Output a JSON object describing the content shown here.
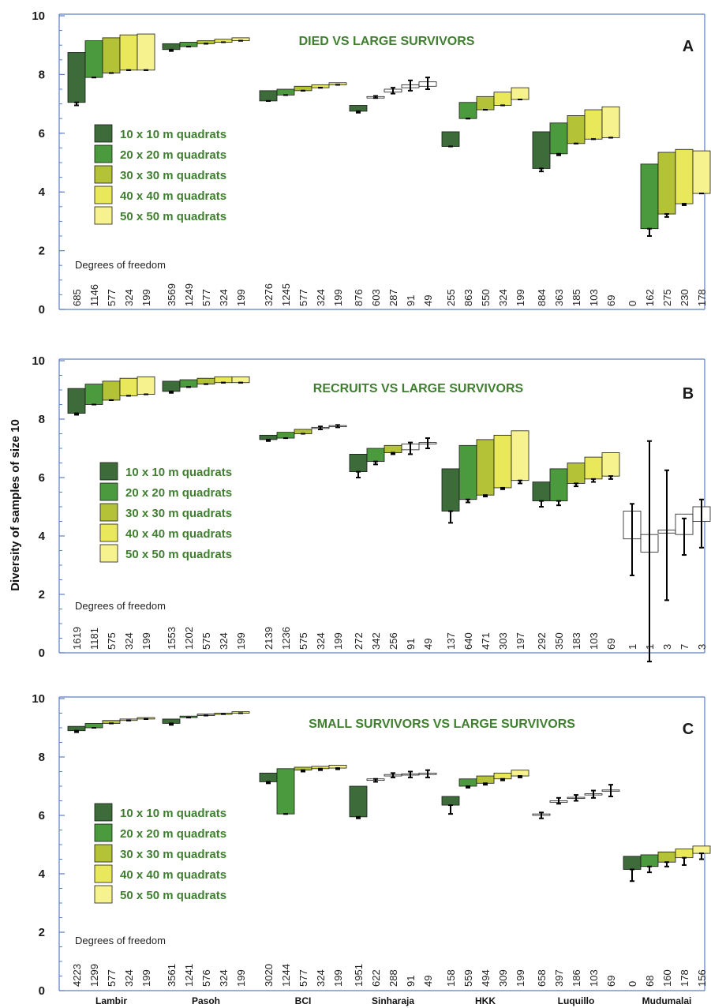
{
  "ylabel": "Diversity of samples of size 10",
  "sites": [
    "Lambir",
    "Pasoh",
    "BCI",
    "Sinharaja",
    "HKK",
    "Luquillo",
    "Mudumalai"
  ],
  "legend": [
    {
      "label": "10 x 10 m quadrats",
      "color": "#3d6b3a"
    },
    {
      "label": "20 x 20 m quadrats",
      "color": "#4c9a3e"
    },
    {
      "label": "30 x 30 m quadrats",
      "color": "#b3c236"
    },
    {
      "label": "40 x 40 m quadrats",
      "color": "#e9e85a"
    },
    {
      "label": "50 x 50 m quadrats",
      "color": "#f6f28e"
    }
  ],
  "dof_title": "Degrees of freedom",
  "chart_data": [
    {
      "type": "bar",
      "panel": "A",
      "title": "DIED VS LARGE SURVIVORS",
      "ylim": [
        0,
        10
      ],
      "yticks": [
        0,
        2,
        4,
        6,
        8,
        10
      ],
      "series": [
        {
          "site": "Lambir",
          "bars": [
            [
              7.05,
              8.75,
              6.95,
              null
            ],
            [
              7.9,
              9.15,
              7.9,
              null
            ],
            [
              8.05,
              9.25,
              8.05,
              null
            ],
            [
              8.15,
              9.35,
              8.15,
              null
            ],
            [
              8.15,
              9.38,
              8.15,
              null
            ]
          ],
          "dof": [
            "685",
            "1146",
            "577",
            "324",
            "199"
          ]
        },
        {
          "site": "Pasoh",
          "bars": [
            [
              8.85,
              9.05,
              8.8,
              null
            ],
            [
              8.95,
              9.1,
              8.95,
              null
            ],
            [
              9.05,
              9.15,
              9.05,
              null
            ],
            [
              9.1,
              9.2,
              9.1,
              null
            ],
            [
              9.15,
              9.25,
              9.15,
              null
            ]
          ],
          "dof": [
            "3569",
            "1249",
            "577",
            "324",
            "199"
          ]
        },
        {
          "site": "BCI",
          "bars": [
            [
              7.1,
              7.45,
              7.1,
              null
            ],
            [
              7.3,
              7.5,
              7.3,
              null
            ],
            [
              7.45,
              7.6,
              7.45,
              null
            ],
            [
              7.55,
              7.65,
              7.55,
              null
            ],
            [
              7.65,
              7.72,
              7.65,
              null
            ]
          ],
          "dof": [
            "3276",
            "1245",
            "577",
            "324",
            "199"
          ]
        },
        {
          "site": "Sinharaja",
          "bars": [
            [
              6.75,
              6.95,
              6.7,
              null
            ],
            [
              7.2,
              7.25,
              7.2,
              7.27
            ],
            [
              7.4,
              7.5,
              7.35,
              7.55
            ],
            [
              7.55,
              7.65,
              7.45,
              7.8
            ],
            [
              7.6,
              7.75,
              7.5,
              7.9
            ]
          ],
          "dof": [
            "876",
            "603",
            "287",
            "91",
            "49"
          ],
          "open": [
            false,
            true,
            true,
            true,
            true
          ]
        },
        {
          "site": "HKK",
          "bars": [
            [
              5.55,
              6.05,
              5.55,
              null
            ],
            [
              6.5,
              7.05,
              6.5,
              null
            ],
            [
              6.8,
              7.25,
              6.8,
              null
            ],
            [
              6.95,
              7.4,
              6.95,
              null
            ],
            [
              7.15,
              7.55,
              7.15,
              null
            ]
          ],
          "dof": [
            "255",
            "863",
            "550",
            "324",
            "199"
          ]
        },
        {
          "site": "Luquillo",
          "bars": [
            [
              4.8,
              6.05,
              4.7,
              null
            ],
            [
              5.3,
              6.35,
              5.25,
              null
            ],
            [
              5.65,
              6.6,
              5.65,
              null
            ],
            [
              5.8,
              6.8,
              5.8,
              null
            ],
            [
              5.85,
              6.9,
              5.85,
              null
            ]
          ],
          "dof": [
            "884",
            "363",
            "185",
            "103",
            "69"
          ]
        },
        {
          "site": "Mudumalai",
          "bars": [
            null,
            [
              2.75,
              4.95,
              2.5,
              null
            ],
            [
              3.25,
              5.35,
              3.15,
              null
            ],
            [
              3.6,
              5.45,
              3.55,
              null
            ],
            [
              3.95,
              5.4,
              3.95,
              null
            ]
          ],
          "dof": [
            "0",
            "162",
            "275",
            "230",
            "178"
          ]
        }
      ]
    },
    {
      "type": "bar",
      "panel": "B",
      "title": "RECRUITS VS LARGE SURVIVORS",
      "ylim": [
        0,
        10
      ],
      "yticks": [
        0,
        2,
        4,
        6,
        8,
        10
      ],
      "series": [
        {
          "site": "Lambir",
          "bars": [
            [
              8.2,
              9.05,
              8.15,
              null
            ],
            [
              8.5,
              9.2,
              8.5,
              null
            ],
            [
              8.65,
              9.3,
              8.65,
              null
            ],
            [
              8.8,
              9.4,
              8.8,
              null
            ],
            [
              8.85,
              9.45,
              8.85,
              null
            ]
          ],
          "dof": [
            "1619",
            "1181",
            "575",
            "324",
            "199"
          ]
        },
        {
          "site": "Pasoh",
          "bars": [
            [
              8.95,
              9.3,
              8.9,
              null
            ],
            [
              9.1,
              9.35,
              9.1,
              null
            ],
            [
              9.2,
              9.4,
              9.2,
              null
            ],
            [
              9.25,
              9.45,
              9.25,
              null
            ],
            [
              9.25,
              9.45,
              9.25,
              null
            ]
          ],
          "dof": [
            "1553",
            "1202",
            "575",
            "324",
            "199"
          ]
        },
        {
          "site": "BCI",
          "bars": [
            [
              7.3,
              7.45,
              7.25,
              null
            ],
            [
              7.35,
              7.55,
              7.35,
              null
            ],
            [
              7.5,
              7.65,
              7.5,
              null
            ],
            [
              7.7,
              7.72,
              7.65,
              7.75
            ],
            [
              7.75,
              7.78,
              7.72,
              7.8
            ]
          ],
          "dof": [
            "2139",
            "1236",
            "575",
            "324",
            "199"
          ],
          "open": [
            false,
            false,
            false,
            true,
            true
          ]
        },
        {
          "site": "Sinharaja",
          "bars": [
            [
              6.2,
              6.8,
              6.0,
              null
            ],
            [
              6.55,
              7.0,
              6.45,
              null
            ],
            [
              6.85,
              7.1,
              6.8,
              null
            ],
            [
              6.95,
              7.15,
              6.8,
              7.2
            ],
            [
              7.15,
              7.2,
              7.0,
              7.35
            ]
          ],
          "dof": [
            "272",
            "342",
            "256",
            "91",
            "49"
          ],
          "open": [
            false,
            false,
            false,
            true,
            true
          ]
        },
        {
          "site": "HKK",
          "bars": [
            [
              4.85,
              6.3,
              4.45,
              null
            ],
            [
              5.25,
              7.1,
              5.15,
              null
            ],
            [
              5.4,
              7.3,
              5.35,
              null
            ],
            [
              5.65,
              7.45,
              5.6,
              null
            ],
            [
              5.9,
              7.6,
              5.8,
              null
            ]
          ],
          "dof": [
            "137",
            "640",
            "471",
            "303",
            "197"
          ]
        },
        {
          "site": "Luquillo",
          "bars": [
            [
              5.2,
              5.85,
              5.0,
              null
            ],
            [
              5.2,
              6.3,
              5.05,
              null
            ],
            [
              5.8,
              6.5,
              5.7,
              null
            ],
            [
              5.95,
              6.7,
              5.85,
              null
            ],
            [
              6.05,
              6.85,
              5.95,
              null
            ]
          ],
          "dof": [
            "292",
            "350",
            "183",
            "103",
            "69"
          ]
        },
        {
          "site": "Mudumalai",
          "bars": [
            [
              3.9,
              4.85,
              2.65,
              5.1
            ],
            [
              3.45,
              4.05,
              -0.3,
              7.25
            ],
            [
              4.1,
              4.2,
              1.8,
              6.25
            ],
            [
              4.05,
              4.75,
              3.35,
              4.6
            ],
            [
              4.5,
              5.0,
              3.6,
              5.25
            ]
          ],
          "dof": [
            "1",
            "1",
            "3",
            "7",
            "3"
          ],
          "open": [
            true,
            true,
            true,
            true,
            true
          ]
        }
      ]
    },
    {
      "type": "bar",
      "panel": "C",
      "title": "SMALL SURVIVORS VS LARGE SURVIVORS",
      "ylim": [
        0,
        10
      ],
      "yticks": [
        0,
        2,
        4,
        6,
        8,
        10
      ],
      "series": [
        {
          "site": "Lambir",
          "bars": [
            [
              8.9,
              9.05,
              8.85,
              null
            ],
            [
              9.0,
              9.15,
              9.0,
              null
            ],
            [
              9.15,
              9.25,
              9.15,
              null
            ],
            [
              9.25,
              9.3,
              9.25,
              null
            ],
            [
              9.3,
              9.35,
              9.3,
              null
            ]
          ],
          "dof": [
            "4223",
            "1299",
            "577",
            "324",
            "199"
          ]
        },
        {
          "site": "Pasoh",
          "bars": [
            [
              9.15,
              9.3,
              9.1,
              null
            ],
            [
              9.35,
              9.4,
              9.35,
              null
            ],
            [
              9.42,
              9.47,
              9.42,
              null
            ],
            [
              9.47,
              9.5,
              9.47,
              null
            ],
            [
              9.5,
              9.55,
              9.5,
              null
            ]
          ],
          "dof": [
            "3561",
            "1241",
            "576",
            "324",
            "199"
          ]
        },
        {
          "site": "BCI",
          "bars": [
            [
              7.15,
              7.45,
              7.1,
              null
            ],
            [
              6.05,
              7.6,
              6.05,
              null
            ],
            [
              7.55,
              7.65,
              7.5,
              null
            ],
            [
              7.6,
              7.68,
              7.55,
              null
            ],
            [
              7.62,
              7.72,
              7.58,
              null
            ]
          ],
          "dof": [
            "3020",
            "1244",
            "577",
            "324",
            "199"
          ]
        },
        {
          "site": "Sinharaja",
          "bars": [
            [
              5.95,
              7.0,
              5.9,
              null
            ],
            [
              7.2,
              7.25,
              7.15,
              7.25
            ],
            [
              7.35,
              7.4,
              7.3,
              7.45
            ],
            [
              7.38,
              7.42,
              7.3,
              7.5
            ],
            [
              7.4,
              7.45,
              7.3,
              7.55
            ]
          ],
          "dof": [
            "1951",
            "622",
            "288",
            "91",
            "49"
          ],
          "open": [
            false,
            true,
            true,
            true,
            true
          ]
        },
        {
          "site": "HKK",
          "bars": [
            [
              6.35,
              6.65,
              6.05,
              null
            ],
            [
              7.0,
              7.25,
              6.95,
              null
            ],
            [
              7.1,
              7.35,
              7.05,
              null
            ],
            [
              7.25,
              7.45,
              7.2,
              null
            ],
            [
              7.35,
              7.55,
              7.3,
              null
            ]
          ],
          "dof": [
            "158",
            "559",
            "494",
            "309",
            "199"
          ]
        },
        {
          "site": "Luquillo",
          "bars": [
            [
              6.0,
              6.05,
              5.9,
              6.1
            ],
            [
              6.45,
              6.5,
              6.4,
              6.6
            ],
            [
              6.6,
              6.62,
              6.5,
              6.7
            ],
            [
              6.72,
              6.74,
              6.6,
              6.85
            ],
            [
              6.85,
              6.87,
              6.65,
              7.05
            ]
          ],
          "dof": [
            "658",
            "397",
            "186",
            "103",
            "69"
          ],
          "open": [
            true,
            true,
            true,
            true,
            true
          ]
        },
        {
          "site": "Mudumalai",
          "bars": [
            [
              4.15,
              4.6,
              3.75,
              null
            ],
            [
              4.25,
              4.65,
              4.05,
              null
            ],
            [
              4.4,
              4.75,
              4.25,
              null
            ],
            [
              4.55,
              4.85,
              4.3,
              null
            ],
            [
              4.7,
              4.95,
              4.5,
              null
            ]
          ],
          "dof": [
            "0",
            "68",
            "160",
            "178",
            "156"
          ]
        }
      ]
    }
  ]
}
